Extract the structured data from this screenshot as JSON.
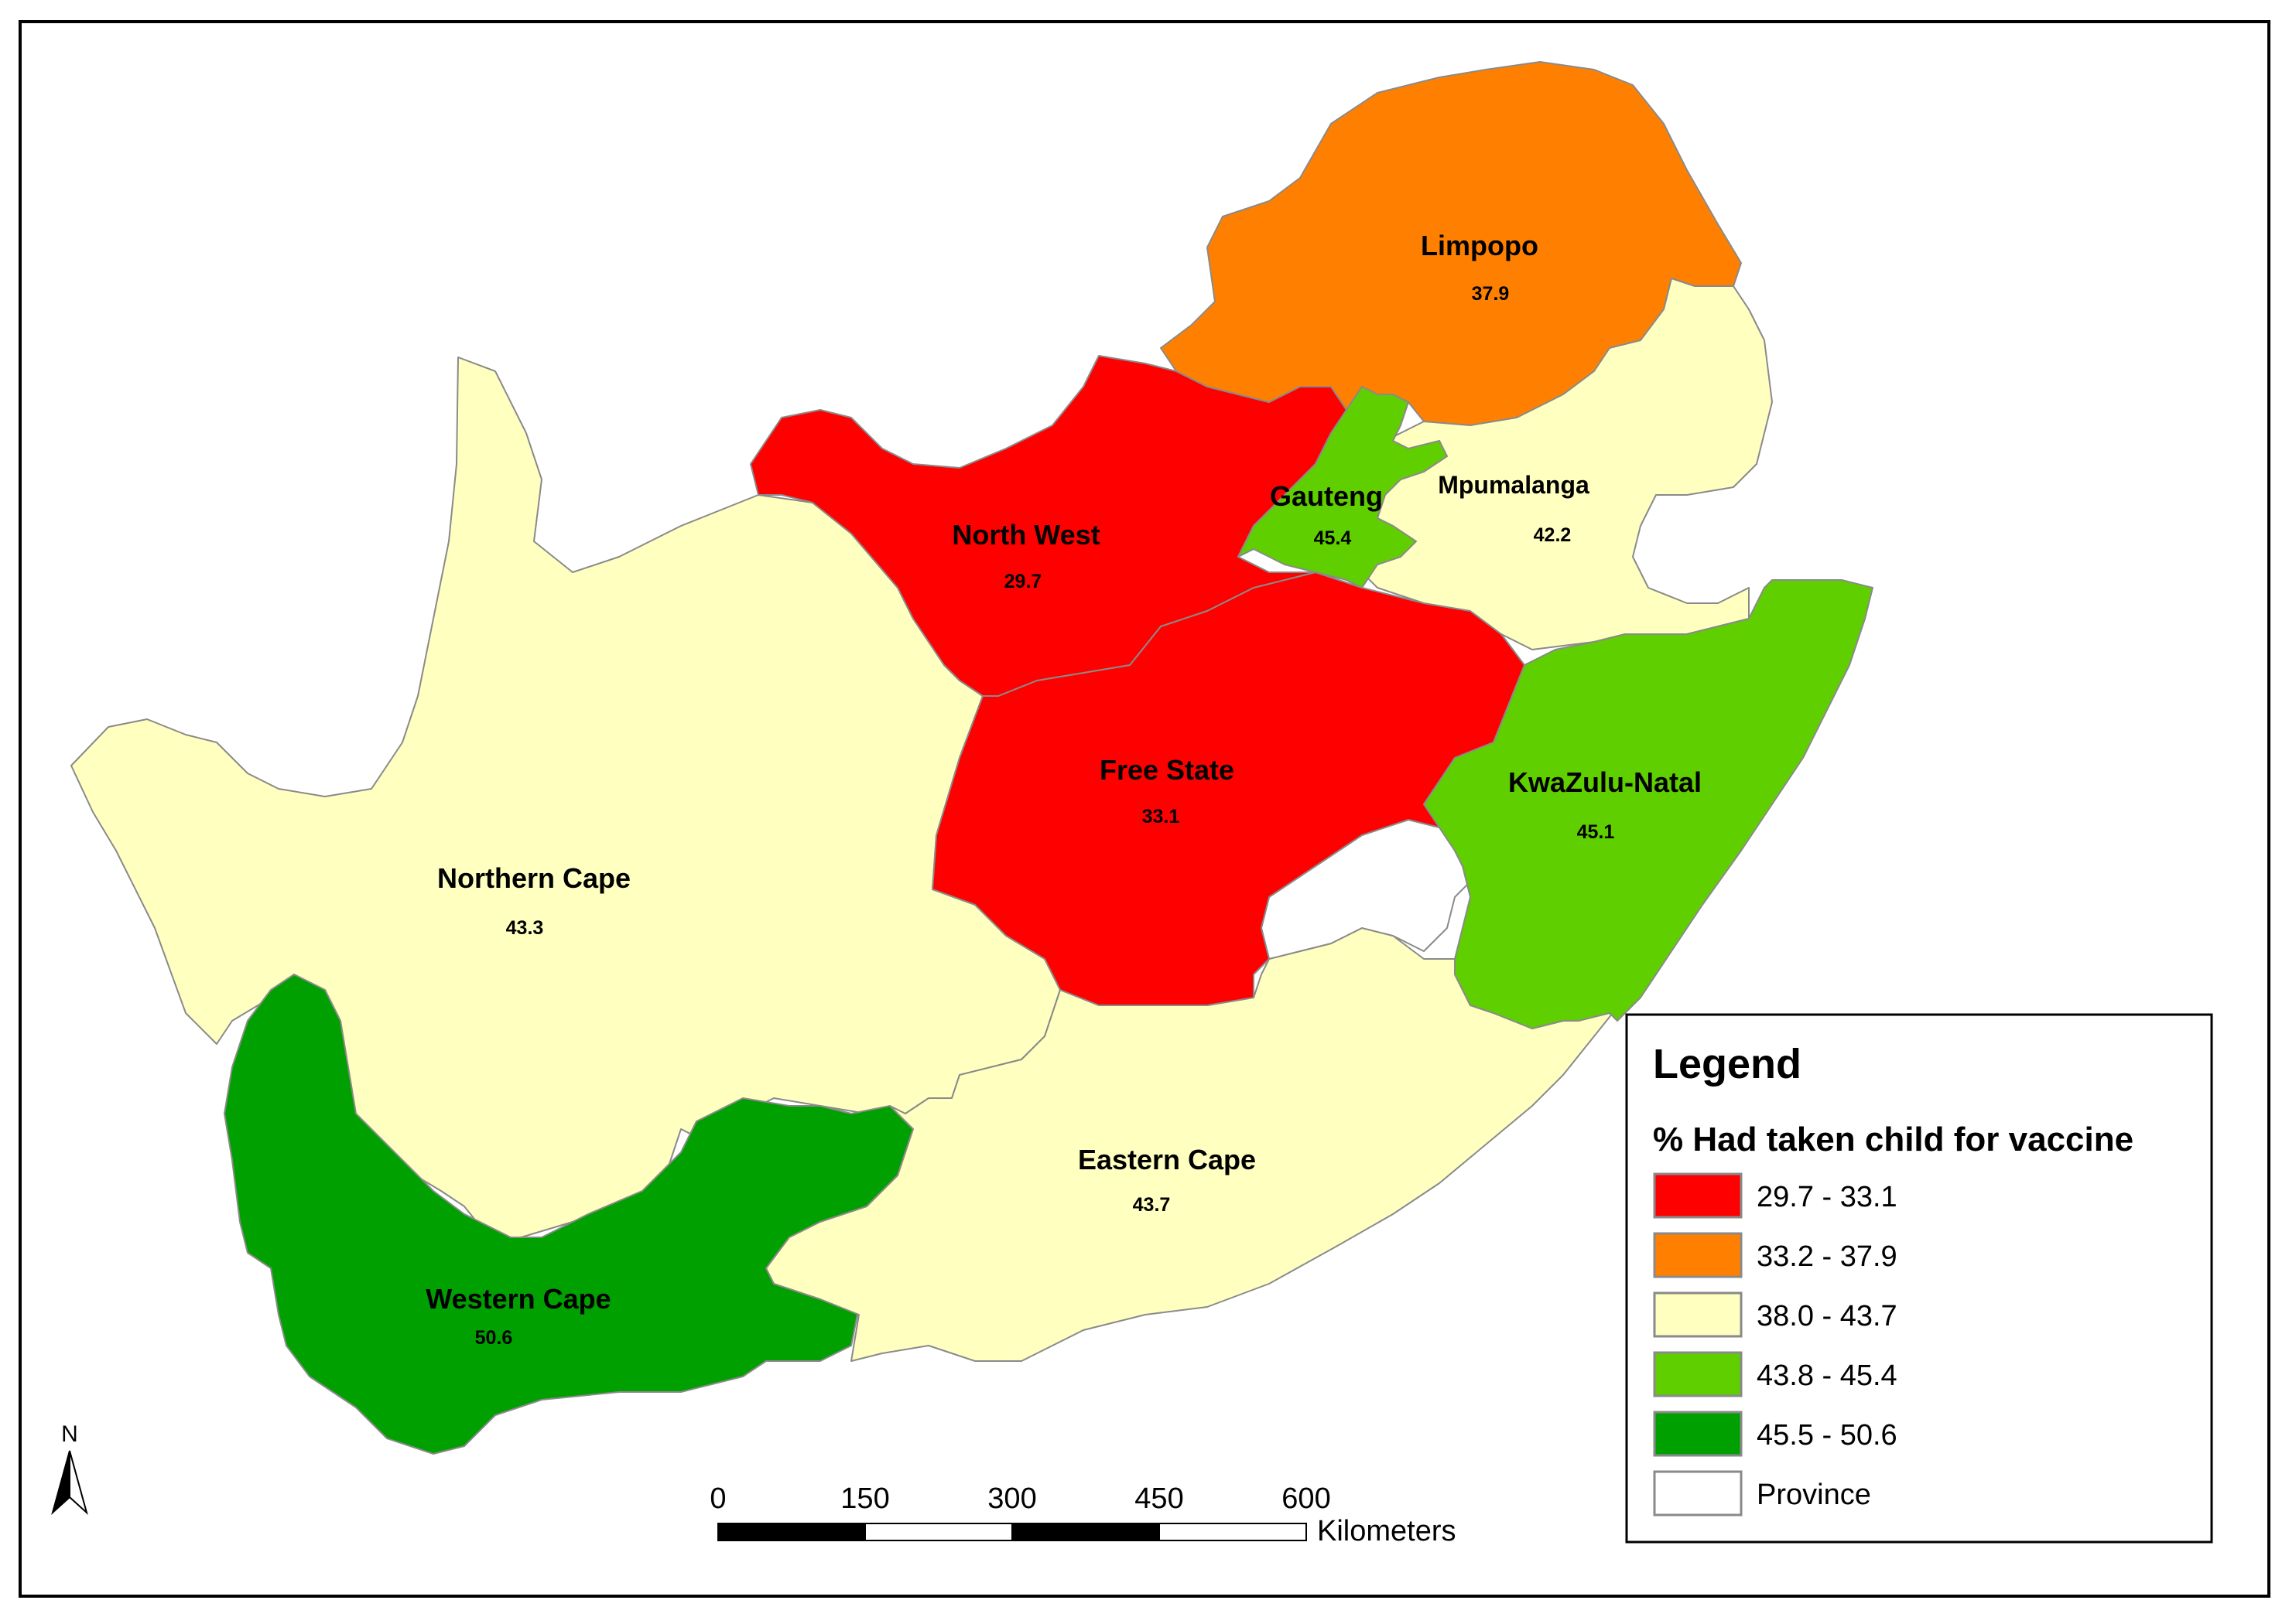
{
  "provinces": [
    {
      "id": "limpopo",
      "name": "Limpopo",
      "value": "37.9",
      "fill": "#ff8000"
    },
    {
      "id": "mpumalanga",
      "name": "Mpumalanga",
      "value": "42.2",
      "fill": "#ffffc0"
    },
    {
      "id": "gauteng",
      "name": "Gauteng",
      "value": "45.4",
      "fill": "#5fcf00"
    },
    {
      "id": "north-west",
      "name": "North West",
      "value": "29.7",
      "fill": "#ff0000"
    },
    {
      "id": "free-state",
      "name": "Free State",
      "value": "33.1",
      "fill": "#ff0000"
    },
    {
      "id": "kwazulu-natal",
      "name": "KwaZulu-Natal",
      "value": "45.1",
      "fill": "#5fcf00"
    },
    {
      "id": "northern-cape",
      "name": "Northern Cape",
      "value": "43.3",
      "fill": "#ffffc0"
    },
    {
      "id": "eastern-cape",
      "name": "Eastern Cape",
      "value": "43.7",
      "fill": "#ffffc0"
    },
    {
      "id": "western-cape",
      "name": "Western Cape",
      "value": "50.6",
      "fill": "#00a000"
    }
  ],
  "legend": {
    "title": "Legend",
    "subtitle": "% Had taken child for vaccine",
    "items": [
      {
        "label": "29.7 - 33.1",
        "color": "#ff0000"
      },
      {
        "label": "33.2 - 37.9",
        "color": "#ff8000"
      },
      {
        "label": "38.0 - 43.7",
        "color": "#ffffc0"
      },
      {
        "label": "43.8 - 45.4",
        "color": "#5fcf00"
      },
      {
        "label": "45.5 - 50.6",
        "color": "#00a000"
      },
      {
        "label": "Province",
        "color": "#ffffff"
      }
    ]
  },
  "scale_bar": {
    "ticks": [
      "0",
      "150",
      "300",
      "450",
      "600"
    ],
    "unit": "Kilometers"
  },
  "north_arrow": {
    "label": "N"
  }
}
